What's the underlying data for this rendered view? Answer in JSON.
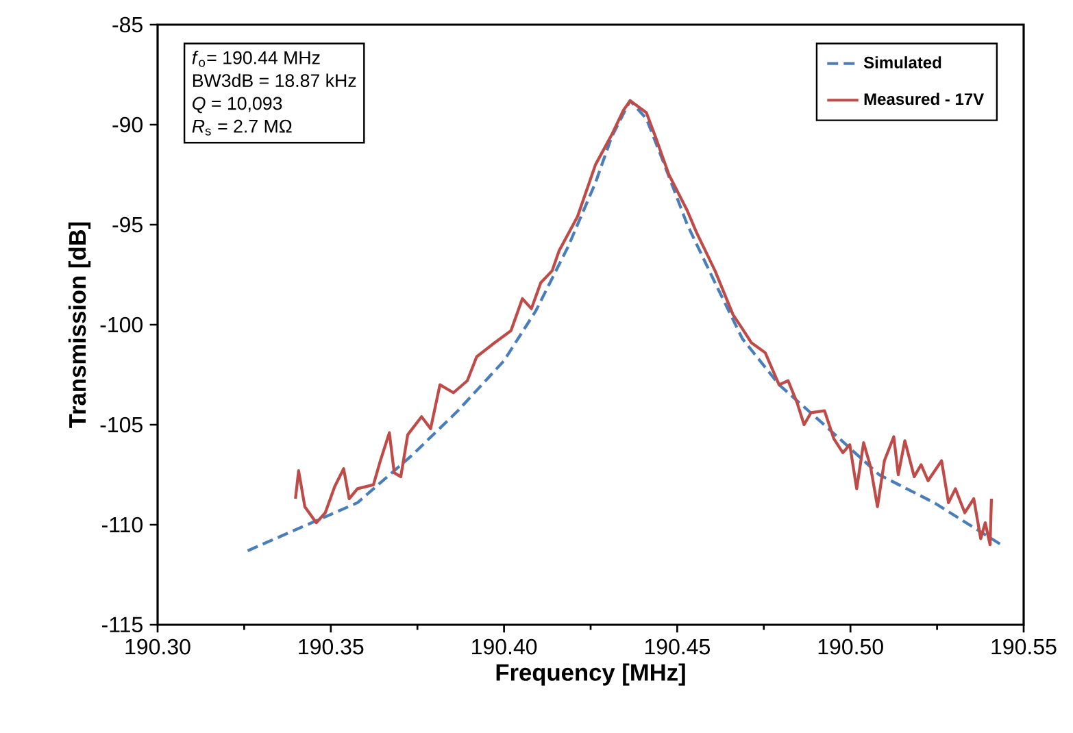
{
  "chart_data": {
    "type": "line",
    "xlabel": "Frequency [MHz]",
    "ylabel": "Transmission [dB]",
    "annotations": [
      "*f*$_{o}$= 190.44 MHz",
      "BW3dB = 18.87 kHz",
      "*Q* = 10,093",
      "*R*$_{s}$ = 2.7 MΩ"
    ],
    "xlim": [
      190.3,
      190.55
    ],
    "xticks": [
      {
        "value": 190.3,
        "label": "190.30"
      },
      {
        "value": 190.35,
        "label": "190.35"
      },
      {
        "value": 190.4,
        "label": "190.40"
      },
      {
        "value": 190.45,
        "label": "190.45"
      },
      {
        "value": 190.5,
        "label": "190.50"
      },
      {
        "value": 190.55,
        "label": "190.55"
      }
    ],
    "ylim": [
      -115,
      -85
    ],
    "yticks": [
      -115,
      -110,
      -105,
      -100,
      -95,
      -90,
      -85
    ],
    "grid": false,
    "legend": "top right",
    "marker": "none",
    "series": [
      {
        "name": "Simulated",
        "color": "#4a7ebb",
        "line_style": "dashed",
        "x": [
          190.326,
          190.3458,
          190.3577,
          190.3736,
          190.3867,
          190.4,
          190.4092,
          190.4185,
          190.4264,
          190.4311,
          190.4364,
          190.4411,
          190.4463,
          190.4529,
          190.4609,
          190.4688,
          190.4794,
          190.4924,
          190.5083,
          190.5242,
          190.5435
        ],
        "values": [
          -111.3,
          -109.8,
          -108.9,
          -106.5,
          -104.3,
          -101.8,
          -99.3,
          -96.1,
          -92.9,
          -90.6,
          -88.8,
          -89.7,
          -92.0,
          -95.0,
          -97.9,
          -100.7,
          -103.0,
          -105.0,
          -107.5,
          -108.9,
          -111.0
        ]
      },
      {
        "name": "Measured - 17V",
        "color": "#be4b48",
        "line_style": "solid",
        "x": [
          190.3398,
          190.3407,
          190.3425,
          190.3458,
          190.3484,
          190.3511,
          190.3537,
          190.3553,
          190.3577,
          190.3623,
          190.3643,
          190.3669,
          190.3683,
          190.3702,
          190.3722,
          190.3762,
          190.3788,
          190.3815,
          190.3854,
          190.3894,
          190.3921,
          190.3973,
          190.402,
          190.4053,
          190.4079,
          190.4106,
          190.4139,
          190.4159,
          190.4212,
          190.4264,
          190.4311,
          190.4344,
          190.4364,
          190.4411,
          190.4437,
          190.4476,
          190.4529,
          190.4556,
          190.4609,
          190.4661,
          190.4688,
          190.4714,
          190.4754,
          190.4794,
          190.482,
          190.4846,
          190.4866,
          190.4886,
          190.4925,
          190.4952,
          190.4978,
          190.4998,
          190.5018,
          190.5038,
          190.5058,
          190.5078,
          190.5098,
          190.5125,
          190.5138,
          190.5157,
          190.5184,
          190.5204,
          190.5224,
          190.5263,
          190.5283,
          190.5303,
          190.533,
          190.5356,
          190.5376,
          190.5389,
          190.5403,
          190.5407
        ],
        "values": [
          -108.7,
          -107.3,
          -109.1,
          -109.9,
          -109.4,
          -108.1,
          -107.2,
          -108.7,
          -108.2,
          -108.0,
          -106.8,
          -105.4,
          -107.4,
          -107.6,
          -105.5,
          -104.6,
          -105.2,
          -103.0,
          -103.4,
          -102.8,
          -101.6,
          -100.9,
          -100.3,
          -98.7,
          -99.2,
          -97.9,
          -97.3,
          -96.3,
          -94.6,
          -92.0,
          -90.5,
          -89.3,
          -88.8,
          -89.4,
          -90.6,
          -92.5,
          -94.3,
          -95.4,
          -97.3,
          -99.5,
          -100.2,
          -100.9,
          -101.4,
          -103.0,
          -102.8,
          -103.9,
          -105.0,
          -104.4,
          -104.3,
          -105.7,
          -106.4,
          -106.0,
          -108.2,
          -105.9,
          -107.1,
          -109.1,
          -106.8,
          -105.6,
          -107.5,
          -105.8,
          -107.6,
          -107.0,
          -107.8,
          -106.8,
          -108.9,
          -108.2,
          -109.4,
          -108.7,
          -110.7,
          -109.9,
          -111.0,
          -108.7
        ]
      }
    ]
  }
}
